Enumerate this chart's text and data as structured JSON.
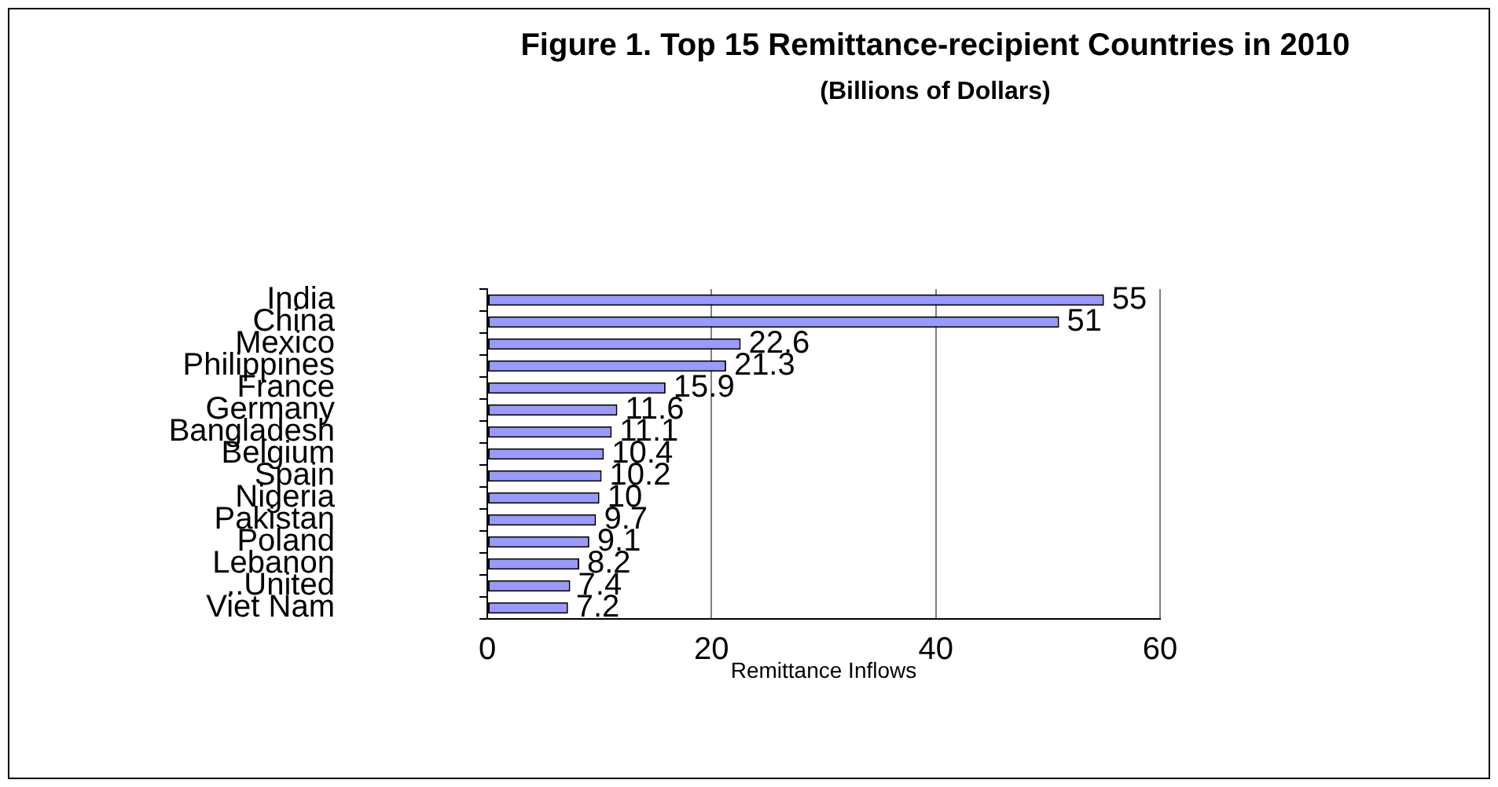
{
  "chart_data": {
    "type": "bar",
    "orientation": "horizontal",
    "title": "Figure 1. Top 15 Remittance-recipient Countries in 2010",
    "subtitle": "(Billions of Dollars)",
    "xlabel": "Remittance Inflows",
    "categories": [
      "India",
      "China",
      "Mexico",
      "Philippines",
      "France",
      "Germany",
      "Bangladesh",
      "Belgium",
      "Spain",
      "Nigeria",
      "Pakistan",
      "Poland",
      "Lebanon",
      "..United",
      "Viet Nam"
    ],
    "values": [
      55,
      51,
      22.6,
      21.3,
      15.9,
      11.6,
      11.1,
      10.4,
      10.2,
      10,
      9.7,
      9.1,
      8.2,
      7.4,
      7.2
    ],
    "color": "#9999ff",
    "xlim": [
      0,
      60
    ],
    "xticks": [
      0,
      20,
      40,
      60
    ],
    "grid": "x",
    "data_labels": true
  }
}
